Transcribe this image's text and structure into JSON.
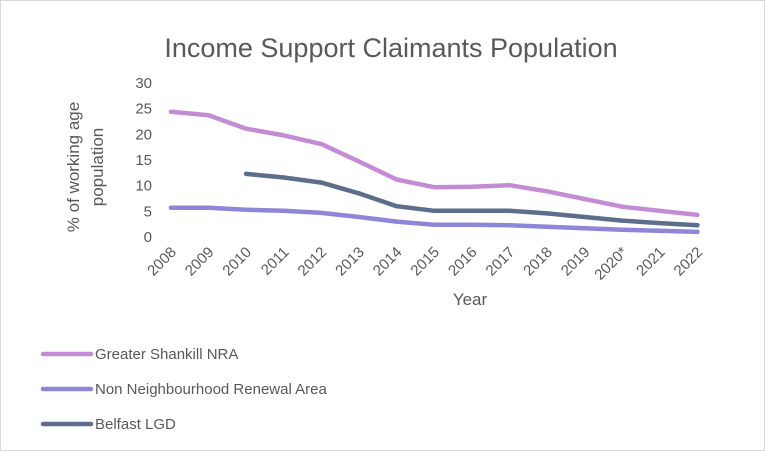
{
  "chart_data": {
    "type": "line",
    "title": "Income Support Claimants Population",
    "xlabel": "Year",
    "ylabel": [
      "% of working age",
      "population"
    ],
    "categories": [
      "2008",
      "2009",
      "2010",
      "2011",
      "2012",
      "2013",
      "2014",
      "2015",
      "2016",
      "2017",
      "2018",
      "2019",
      "2020*",
      "2021",
      "2022"
    ],
    "ylim": [
      0,
      30
    ],
    "yticks": [
      0,
      5,
      10,
      15,
      20,
      25,
      30
    ],
    "grid": false,
    "legend_position": "bottom-left",
    "series": [
      {
        "name": "Greater Shankill NRA",
        "color": "#c58cd6",
        "values": [
          24.4,
          23.7,
          21.1,
          19.8,
          18.1,
          14.7,
          11.2,
          9.7,
          9.8,
          10.1,
          8.9,
          7.4,
          5.9,
          5.1,
          4.3
        ]
      },
      {
        "name": "Non Neighbourhood Renewal Area",
        "color": "#8e86d8",
        "values": [
          5.7,
          5.7,
          5.3,
          5.1,
          4.7,
          3.9,
          3.0,
          2.4,
          2.4,
          2.3,
          2.0,
          1.7,
          1.4,
          1.2,
          1.0
        ]
      },
      {
        "name": "Belfast LGD",
        "color": "#5c6e8c",
        "values": [
          null,
          null,
          12.3,
          11.6,
          10.6,
          8.5,
          6.0,
          5.1,
          5.1,
          5.1,
          4.6,
          3.9,
          3.2,
          2.7,
          2.3
        ]
      }
    ]
  }
}
